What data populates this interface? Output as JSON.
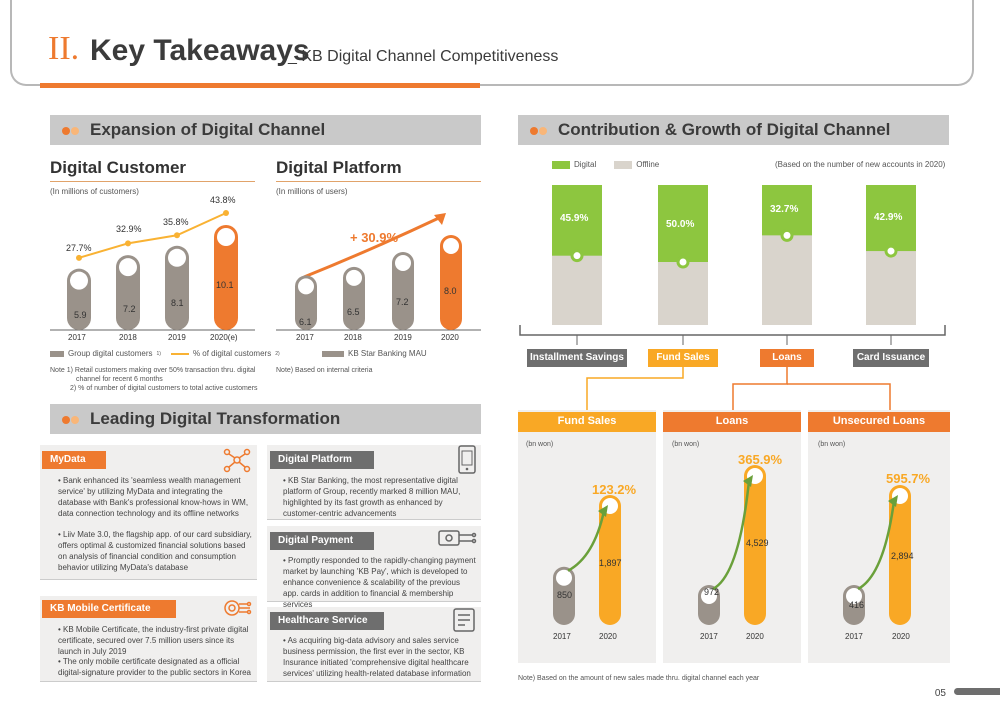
{
  "header": {
    "roman": "II.",
    "title": "Key Takeaways",
    "subtitle": "_ KB Digital Channel Competitiveness"
  },
  "sections": {
    "expansion": "Expansion of Digital Channel",
    "contribution": "Contribution & Growth of Digital Channel",
    "leading": "Leading Digital Transformation"
  },
  "digital_customer": {
    "title": "Digital Customer",
    "unit": "(In millions of customers)",
    "chart_data": {
      "type": "bar",
      "categories": [
        "2017",
        "2018",
        "2019",
        "2020(e)"
      ],
      "series": [
        {
          "name": "Group digital customers",
          "values": [
            5.9,
            7.2,
            8.1,
            10.1
          ]
        },
        {
          "name": "% of digital customers",
          "values": [
            27.7,
            32.9,
            35.8,
            43.8
          ]
        }
      ]
    },
    "value_labels": [
      "5.9",
      "7.2",
      "8.1",
      "10.1"
    ],
    "pct_labels": [
      "27.7%",
      "32.9%",
      "35.8%",
      "43.8%"
    ],
    "legend1": "Group digital customers",
    "legend1_sup": "1)",
    "legend2": "% of digital customers",
    "legend2_sup": "2)",
    "note1": "Note 1) Retail customers making over 50% transaction thru. digital",
    "note1b": "channel for recent 6 months",
    "note2": "2) % of number of digital customers to total active customers"
  },
  "digital_platform": {
    "title": "Digital Platform",
    "unit": "(In millions of users)",
    "growth": "+ 30.9%",
    "chart_data": {
      "type": "bar",
      "categories": [
        "2017",
        "2018",
        "2019",
        "2020"
      ],
      "series": [
        {
          "name": "KB Star Banking MAU",
          "values": [
            6.1,
            6.5,
            7.2,
            8.0
          ]
        }
      ]
    },
    "value_labels": [
      "6.1",
      "6.5",
      "7.2",
      "8.0"
    ],
    "legend": "KB Star Banking MAU",
    "note": "Note) Based on internal criteria"
  },
  "contribution": {
    "legend_digital": "Digital",
    "legend_offline": "Offline",
    "basis": "(Based on the number of new accounts in 2020)",
    "chart_data": {
      "type": "bar",
      "categories": [
        "Installment Savings",
        "Fund Sales",
        "Loans",
        "Card Issuance"
      ],
      "series": [
        {
          "name": "Digital",
          "values": [
            45.9,
            50.0,
            32.7,
            42.9
          ]
        }
      ]
    },
    "pct_labels": [
      "45.9%",
      "50.0%",
      "32.7%",
      "42.9%"
    ],
    "cat_labels": [
      "Installment Savings",
      "Fund Sales",
      "Loans",
      "Card Issuance"
    ],
    "colors": {
      "digital": "#8dc63f",
      "offline": "#d9d4cc",
      "orange": "#ee7a2f",
      "yellow": "#f9a825",
      "gray": "#9a928a"
    }
  },
  "growth_panels": [
    {
      "title": "Fund Sales",
      "unit": "(bn won)",
      "growth": "123.2%",
      "chart_data": {
        "type": "bar",
        "categories": [
          "2017",
          "2020"
        ],
        "values": [
          850,
          1897
        ]
      },
      "labels": [
        "850",
        "1,897"
      ],
      "years": [
        "2017",
        "2020"
      ]
    },
    {
      "title": "Loans",
      "unit": "(bn won)",
      "growth": "365.9%",
      "chart_data": {
        "type": "bar",
        "categories": [
          "2017",
          "2020"
        ],
        "values": [
          972,
          4529
        ]
      },
      "labels": [
        "972",
        "4,529"
      ],
      "years": [
        "2017",
        "2020"
      ]
    },
    {
      "title": "Unsecured Loans",
      "unit": "(bn won)",
      "growth": "595.7%",
      "chart_data": {
        "type": "bar",
        "categories": [
          "2017",
          "2020"
        ],
        "values": [
          416,
          2894
        ]
      },
      "labels": [
        "416",
        "2,894"
      ],
      "years": [
        "2017",
        "2020"
      ]
    }
  ],
  "growth_note": "Note) Based on the amount of new sales made thru. digital channel each year",
  "boxes": {
    "mydata": {
      "tag": "MyData",
      "p1": "• Bank enhanced its 'seamless wealth management service' by utilizing MyData and integrating the database with Bank's professional know-hows in WM, data connection technology and its offline networks",
      "p2": "• Liiv Mate 3.0, the flagship app. of our card subsidiary, offers optimal & customized financial solutions based on analysis of financial condition and consumption behavior utilizing MyData's database"
    },
    "cert": {
      "tag": "KB Mobile Certificate",
      "p1": "• KB Mobile Certificate, the industry-first private digital certificate, secured over 7.5 million users since its launch in July 2019",
      "p2": "• The only mobile certificate designated as a official digital-signature provider to the public sectors in Korea"
    },
    "platform": {
      "tag": "Digital Platform",
      "p1": "• KB Star Banking, the most representative digital platform of Group, recently marked 8 million MAU, highlighted by its fast growth as enhanced by customer-centric advancements"
    },
    "payment": {
      "tag": "Digital Payment",
      "p1": "• Promptly responded to the rapidly-changing payment market by launching 'KB Pay', which is developed to enhance convenience & scalability of the previous app. cards in addition to financial & membership services"
    },
    "health": {
      "tag": "Healthcare Service",
      "p1": "• As acquiring big-data advisory and sales service business permission, the first ever in the sector, KB Insurance initiated 'comprehensive digital healthcare services' utilizing health-related database information"
    }
  },
  "page": "05"
}
